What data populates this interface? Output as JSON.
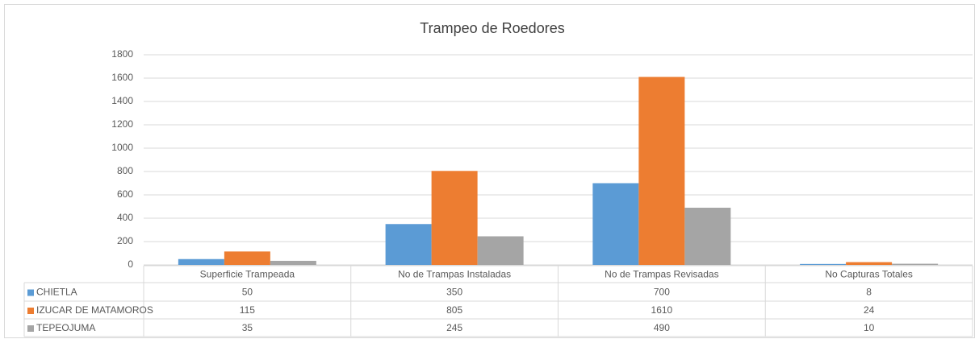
{
  "chart_data": {
    "type": "bar",
    "title": "Trampeo de Roedores",
    "categories": [
      "Superficie Trampeada",
      "No de Trampas Instaladas",
      "No de Trampas Revisadas",
      "No Capturas Totales"
    ],
    "series": [
      {
        "name": "CHIETLA",
        "color": "#5b9bd5",
        "values": [
          50,
          350,
          700,
          8
        ]
      },
      {
        "name": "IZUCAR DE MATAMOROS",
        "color": "#ed7d31",
        "values": [
          115,
          805,
          1610,
          24
        ]
      },
      {
        "name": "TEPEOJUMA",
        "color": "#a5a5a5",
        "values": [
          35,
          245,
          490,
          10
        ]
      }
    ],
    "ylim": [
      0,
      1800
    ],
    "yticks": [
      0,
      200,
      400,
      600,
      800,
      1000,
      1200,
      1400,
      1600,
      1800
    ],
    "grid": true
  }
}
